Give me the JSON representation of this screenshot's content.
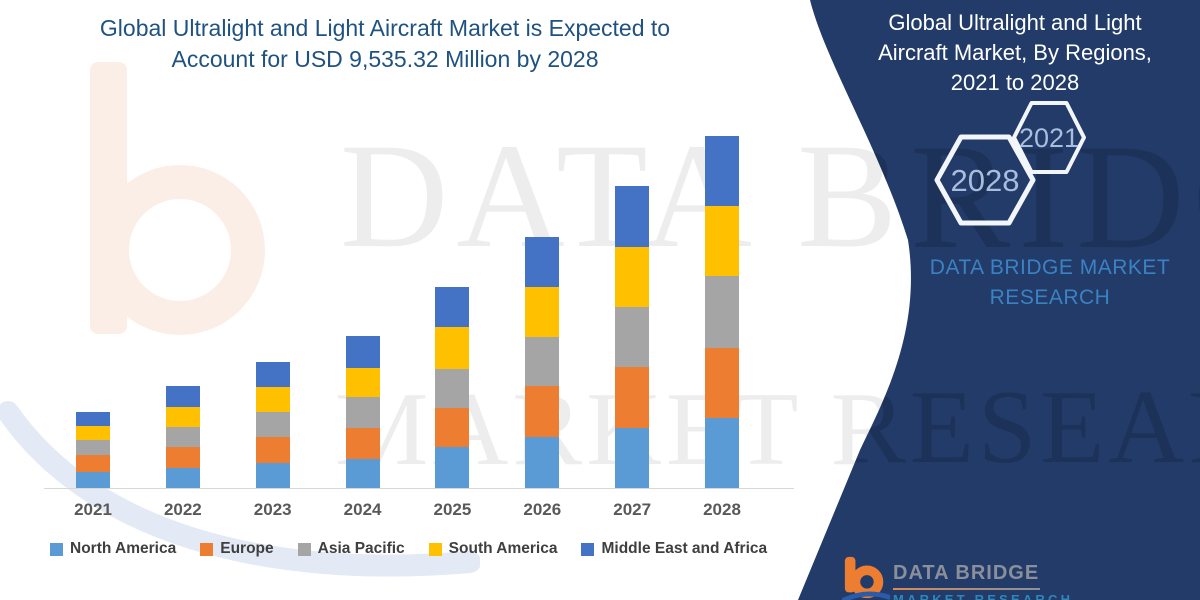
{
  "header": {
    "title_line1": "Global Ultralight and Light Aircraft Market is Expected to",
    "title_line2": "Account for USD 9,535.32 Million by 2028"
  },
  "watermark": {
    "line1": "DATA BRIDGE",
    "line2": "MARKET RESEARCH"
  },
  "side_panel": {
    "title_lines": [
      "Global Ultralight and Light",
      "Aircraft Market, By Regions,",
      "2021 to 2028"
    ],
    "hexagons": [
      {
        "label": "2028"
      },
      {
        "label": "2021"
      }
    ],
    "brand_lines": [
      "DATA BRIDGE MARKET",
      "RESEARCH"
    ]
  },
  "footer_logo": {
    "name": "DATA BRIDGE",
    "subtitle": "MARKET RESEARCH"
  },
  "colors": {
    "panel_navy": "#223B68",
    "title_blue": "#1F5280",
    "brand_blue": "#3B82C4",
    "hexagon_label": "#A9BEDE",
    "axis_gray": "#D8D8D8",
    "x_label_gray": "#595959",
    "legend_text": "#3F3F3F",
    "ghost_peach": "#FBEEE7",
    "ghost_blue": "#E3EAF6"
  },
  "chart_data": {
    "type": "bar",
    "stacked": true,
    "title": "Global Ultralight and Light Aircraft Market is Expected to Account for USD 9,535.32 Million by 2028",
    "unit": "USD Million",
    "categories": [
      "2021",
      "2022",
      "2023",
      "2024",
      "2025",
      "2026",
      "2027",
      "2028"
    ],
    "series": [
      {
        "name": "North America",
        "color": "#5B9BD5",
        "values": [
          467,
          575,
          702,
          821,
          1126,
          1396,
          1656,
          1910
        ]
      },
      {
        "name": "Europe",
        "color": "#ED7D31",
        "values": [
          459,
          567,
          702,
          829,
          1062,
          1378,
          1640,
          1907
        ]
      },
      {
        "name": "Asia Pacific",
        "color": "#A5A5A5",
        "values": [
          389,
          521,
          667,
          829,
          1064,
          1332,
          1629,
          1937
        ]
      },
      {
        "name": "South America",
        "color": "#FFC000",
        "values": [
          394,
          559,
          675,
          791,
          1124,
          1342,
          1613,
          1891
        ]
      },
      {
        "name": "Middle East and Africa",
        "color": "#4472C4",
        "values": [
          378,
          548,
          675,
          864,
          1072,
          1351,
          1648,
          1890
        ]
      }
    ],
    "totals": [
      2087,
      2770,
      3421,
      4134,
      5448,
      6799,
      8186,
      9535
    ],
    "highlight_value_2028": "USD 9,535.32 Million",
    "xlabel": "",
    "ylabel": "",
    "ylim": [
      0,
      10000
    ],
    "grid": false,
    "y_axis_shown": false,
    "legend_position": "bottom"
  }
}
